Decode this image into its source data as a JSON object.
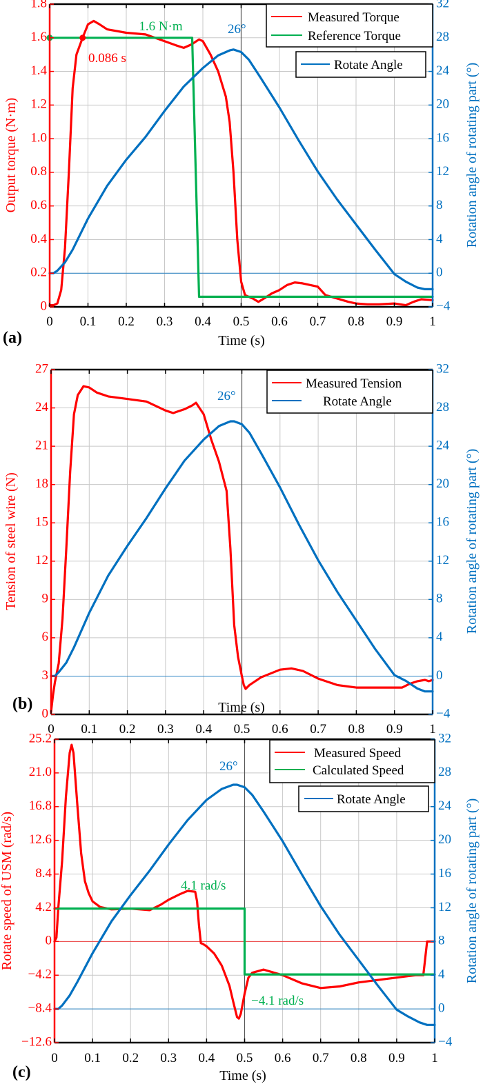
{
  "colors": {
    "red": "#ff0000",
    "green": "#00b050",
    "blue": "#0070c0",
    "grid": "#c8c8c8",
    "axis": "#000000"
  },
  "chart_data": [
    {
      "panel": "(a)",
      "type": "line",
      "xlabel": "Time (s)",
      "ylabel_left": "Output torque (N·m)",
      "ylabel_right": "Rotation angle of rotating part (°)",
      "xlim": [
        0,
        1
      ],
      "ylim_left": [
        0,
        1.8
      ],
      "ylim_right": [
        -4,
        32
      ],
      "xticks": [
        "0",
        "0.1",
        "0.2",
        "0.3",
        "0.4",
        "0.5",
        "0.6",
        "0.7",
        "0.8",
        "0.9",
        "1"
      ],
      "yticks_left": [
        "0",
        "0.2",
        "0.4",
        "0.6",
        "0.8",
        "1.0",
        "1.2",
        "1.4",
        "1.6",
        "1.8"
      ],
      "yticks_left_values": [
        0,
        0.2,
        0.4,
        0.6,
        0.8,
        1.0,
        1.2,
        1.4,
        1.6,
        1.8
      ],
      "yticks_right": [
        "−4",
        "0",
        "4",
        "8",
        "12",
        "16",
        "20",
        "24",
        "28",
        "32"
      ],
      "yticks_right_values": [
        -4,
        0,
        4,
        8,
        12,
        16,
        20,
        24,
        28,
        32
      ],
      "grid": true,
      "vline_x": 0.5,
      "hline_right": 0,
      "legend": {
        "group1": [
          "Measured Torque",
          "Reference Torque"
        ],
        "group2": [
          "Rotate Angle"
        ],
        "placement": "top-right"
      },
      "annotations": [
        {
          "text": "1.6 N·m",
          "series": "Reference Torque",
          "x": 0.26,
          "y": 1.66
        },
        {
          "text": "0.086 s",
          "series": "Measured Torque",
          "x": 0.1,
          "y": 1.47
        },
        {
          "text": "26°",
          "series": "Rotate Angle",
          "x": 0.455,
          "y_right": 28.7
        }
      ],
      "markers": [
        {
          "series": "Reference Torque",
          "x": 0.0,
          "y": 1.6
        },
        {
          "series": "Measured Torque",
          "x": 0.086,
          "y": 1.6
        }
      ],
      "series": [
        {
          "name": "Measured Torque",
          "axis": "left",
          "color": "red",
          "x": [
            0,
            0.01,
            0.02,
            0.03,
            0.04,
            0.05,
            0.06,
            0.07,
            0.086,
            0.1,
            0.115,
            0.13,
            0.15,
            0.2,
            0.25,
            0.3,
            0.33,
            0.35,
            0.37,
            0.39,
            0.4,
            0.42,
            0.44,
            0.46,
            0.47,
            0.48,
            0.49,
            0.5,
            0.51,
            0.52,
            0.53,
            0.545,
            0.56,
            0.58,
            0.6,
            0.62,
            0.64,
            0.66,
            0.7,
            0.72,
            0.75,
            0.78,
            0.8,
            0.83,
            0.86,
            0.9,
            0.93,
            0.95,
            0.97,
            1.0
          ],
          "y": [
            0.01,
            0.01,
            0.02,
            0.1,
            0.35,
            0.8,
            1.3,
            1.5,
            1.6,
            1.68,
            1.7,
            1.68,
            1.65,
            1.63,
            1.62,
            1.58,
            1.555,
            1.54,
            1.56,
            1.59,
            1.58,
            1.5,
            1.4,
            1.25,
            1.1,
            0.8,
            0.4,
            0.15,
            0.07,
            0.06,
            0.05,
            0.03,
            0.05,
            0.08,
            0.1,
            0.13,
            0.145,
            0.14,
            0.12,
            0.07,
            0.05,
            0.03,
            0.02,
            0.015,
            0.015,
            0.02,
            0.01,
            0.03,
            0.045,
            0.04
          ]
        },
        {
          "name": "Reference Torque",
          "axis": "left",
          "color": "green",
          "x": [
            0,
            0.372,
            0.39,
            1.0
          ],
          "y": [
            1.6,
            1.6,
            0.06,
            0.06
          ]
        },
        {
          "name": "Rotate Angle",
          "axis": "right",
          "color": "blue",
          "x": [
            0,
            0.01,
            0.02,
            0.04,
            0.06,
            0.1,
            0.15,
            0.2,
            0.25,
            0.3,
            0.35,
            0.4,
            0.44,
            0.47,
            0.48,
            0.5,
            0.52,
            0.55,
            0.6,
            0.65,
            0.7,
            0.75,
            0.8,
            0.85,
            0.9,
            0.93,
            0.96,
            0.98,
            1.0
          ],
          "y": [
            0,
            0,
            0.3,
            1.3,
            2.8,
            6.5,
            10.4,
            13.5,
            16.2,
            19.3,
            22.2,
            24.4,
            25.9,
            26.5,
            26.6,
            26.3,
            25.4,
            23.3,
            19.7,
            15.8,
            12.1,
            8.8,
            5.8,
            2.8,
            -0.1,
            -1.0,
            -1.7,
            -1.9,
            -1.9
          ]
        }
      ]
    },
    {
      "panel": "(b)",
      "type": "line",
      "xlabel": "Time (s)",
      "ylabel_left": "Tension of steel wire  (N)",
      "ylabel_right": "Rotation angle of rotating part (°)",
      "xlim": [
        0,
        1
      ],
      "ylim_left": [
        0,
        27
      ],
      "ylim_right": [
        -4,
        32
      ],
      "xticks": [
        "0",
        "0.1",
        "0.2",
        "0.3",
        "0.4",
        "0.5",
        "0.6",
        "0.7",
        "0.8",
        "0.9",
        "1"
      ],
      "yticks_left": [
        "0",
        "3",
        "6",
        "9",
        "12",
        "15",
        "18",
        "21",
        "24",
        "27"
      ],
      "yticks_left_values": [
        0,
        3,
        6,
        9,
        12,
        15,
        18,
        21,
        24,
        27
      ],
      "yticks_right": [
        "−4",
        "0",
        "4",
        "8",
        "12",
        "16",
        "20",
        "24",
        "28",
        "32"
      ],
      "yticks_right_values": [
        -4,
        0,
        4,
        8,
        12,
        16,
        20,
        24,
        28,
        32
      ],
      "grid": true,
      "vline_x": 0.5,
      "hline_right": 0,
      "legend": {
        "group1": [
          "Measured Tension",
          "Rotate Angle"
        ],
        "placement": "top-right"
      },
      "annotations": [
        {
          "text": "26°",
          "series": "Rotate Angle",
          "x": 0.46,
          "y_right": 29.1
        }
      ],
      "series": [
        {
          "name": "Measured Tension",
          "axis": "left",
          "color": "red",
          "x": [
            0,
            0.005,
            0.01,
            0.02,
            0.03,
            0.04,
            0.05,
            0.06,
            0.07,
            0.085,
            0.1,
            0.12,
            0.15,
            0.2,
            0.25,
            0.3,
            0.32,
            0.35,
            0.37,
            0.38,
            0.4,
            0.42,
            0.44,
            0.46,
            0.47,
            0.48,
            0.49,
            0.5,
            0.505,
            0.51,
            0.52,
            0.55,
            0.6,
            0.63,
            0.66,
            0.7,
            0.75,
            0.8,
            0.85,
            0.9,
            0.92,
            0.94,
            0.96,
            0.98,
            0.99,
            1.0
          ],
          "y": [
            0.2,
            1.5,
            2.5,
            4.0,
            7.5,
            13.0,
            19.0,
            23.5,
            25.0,
            25.7,
            25.6,
            25.2,
            24.9,
            24.7,
            24.5,
            23.8,
            23.6,
            23.9,
            24.2,
            24.4,
            23.5,
            21.5,
            19.8,
            17.5,
            13.0,
            7.0,
            4.5,
            3.0,
            2.3,
            2.0,
            2.3,
            2.9,
            3.5,
            3.6,
            3.4,
            2.8,
            2.3,
            2.1,
            2.1,
            2.1,
            2.1,
            2.4,
            2.6,
            2.7,
            2.6,
            2.7
          ]
        },
        {
          "name": "Rotate Angle",
          "axis": "right",
          "color": "blue",
          "x": [
            0,
            0.01,
            0.02,
            0.04,
            0.06,
            0.1,
            0.15,
            0.2,
            0.25,
            0.3,
            0.35,
            0.4,
            0.44,
            0.47,
            0.48,
            0.5,
            0.52,
            0.55,
            0.6,
            0.65,
            0.7,
            0.75,
            0.8,
            0.85,
            0.9,
            0.93,
            0.96,
            0.98,
            1.0
          ],
          "y": [
            0,
            0,
            0.4,
            1.4,
            3.0,
            6.6,
            10.5,
            13.6,
            16.5,
            19.6,
            22.5,
            24.7,
            26.1,
            26.6,
            26.6,
            26.3,
            25.4,
            23.3,
            19.7,
            15.8,
            12.1,
            8.8,
            5.8,
            2.8,
            0.1,
            -0.5,
            -1.3,
            -1.6,
            -1.6
          ]
        }
      ]
    },
    {
      "panel": "(c)",
      "type": "line",
      "xlabel": "Time (s)",
      "ylabel_left": "Rotate speed of USM  (rad/s)",
      "ylabel_right": "Rotation angle of rotating part (°)",
      "xlim": [
        0,
        1
      ],
      "ylim_left": [
        -12.6,
        25.2
      ],
      "ylim_right": [
        -4,
        32
      ],
      "xticks": [
        "0",
        "0.1",
        "0.2",
        "0.3",
        "0.4",
        "0.5",
        "0.6",
        "0.7",
        "0.8",
        "0.9",
        "1"
      ],
      "yticks_left": [
        "−12.6",
        "−8.4",
        "−4.2",
        "0",
        "4.2",
        "8.4",
        "12.6",
        "16.8",
        "21.0",
        "25.2"
      ],
      "yticks_left_values": [
        -12.6,
        -8.4,
        -4.2,
        0,
        4.2,
        8.4,
        12.6,
        16.8,
        21.0,
        25.2
      ],
      "yticks_right": [
        "−4",
        "0",
        "4",
        "8",
        "12",
        "16",
        "20",
        "24",
        "28",
        "32"
      ],
      "yticks_right_values": [
        -4,
        0,
        4,
        8,
        12,
        16,
        20,
        24,
        28,
        32
      ],
      "grid": true,
      "vline_x": 0.5,
      "hline_left": 0,
      "hline_right": 0,
      "legend": {
        "group1": [
          "Measured Speed",
          "Calculated Speed"
        ],
        "group2": [
          "Rotate Angle"
        ],
        "placement": "top-right"
      },
      "annotations": [
        {
          "text": "4.1 rad/s",
          "series": "Calculated Speed",
          "x": 0.42,
          "y": 6.4
        },
        {
          "text": "−4.1 rad/s",
          "series": "Calculated Speed",
          "x": 0.6,
          "y": -7.0
        },
        {
          "text": "26°",
          "series": "Rotate Angle",
          "x": 0.465,
          "y_right": 28.3
        }
      ],
      "series": [
        {
          "name": "Measured Speed",
          "axis": "left",
          "color": "red",
          "x": [
            0,
            0.005,
            0.01,
            0.02,
            0.03,
            0.04,
            0.045,
            0.05,
            0.06,
            0.07,
            0.08,
            0.09,
            0.1,
            0.12,
            0.15,
            0.2,
            0.25,
            0.28,
            0.3,
            0.33,
            0.35,
            0.37,
            0.375,
            0.38,
            0.385,
            0.39,
            0.4,
            0.42,
            0.44,
            0.46,
            0.47,
            0.48,
            0.485,
            0.49,
            0.5,
            0.51,
            0.52,
            0.55,
            0.6,
            0.65,
            0.7,
            0.75,
            0.8,
            0.85,
            0.9,
            0.95,
            0.97,
            0.98,
            1.0
          ],
          "y": [
            0,
            0.5,
            4.2,
            10.0,
            18.0,
            23.5,
            24.5,
            23.5,
            17.0,
            11.0,
            7.5,
            6.0,
            5.0,
            4.3,
            4.0,
            4.1,
            3.9,
            4.6,
            5.2,
            5.9,
            6.3,
            6.2,
            5.0,
            2.0,
            -0.2,
            -0.3,
            -0.6,
            -1.5,
            -3.0,
            -5.5,
            -7.5,
            -9.4,
            -9.6,
            -9.0,
            -6.5,
            -4.5,
            -3.9,
            -3.5,
            -4.2,
            -5.2,
            -5.8,
            -5.6,
            -5.1,
            -4.8,
            -4.5,
            -4.2,
            -4.2,
            0,
            0
          ]
        },
        {
          "name": "Calculated Speed",
          "axis": "left",
          "color": "green",
          "x": [
            0,
            0.5,
            0.5,
            1.0
          ],
          "y": [
            4.1,
            4.1,
            -4.1,
            -4.1
          ]
        },
        {
          "name": "Rotate Angle",
          "axis": "right",
          "color": "blue",
          "x": [
            0,
            0.01,
            0.02,
            0.04,
            0.06,
            0.1,
            0.15,
            0.2,
            0.25,
            0.3,
            0.35,
            0.4,
            0.44,
            0.47,
            0.48,
            0.5,
            0.52,
            0.55,
            0.6,
            0.65,
            0.7,
            0.75,
            0.8,
            0.85,
            0.9,
            0.93,
            0.96,
            0.98,
            1.0
          ],
          "y": [
            0,
            0,
            0.4,
            1.6,
            3.2,
            6.6,
            10.4,
            13.5,
            16.4,
            19.5,
            22.4,
            24.8,
            26.1,
            26.6,
            26.6,
            26.3,
            25.4,
            23.4,
            19.9,
            16.0,
            12.2,
            8.8,
            5.8,
            2.8,
            -0.1,
            -0.9,
            -1.6,
            -1.9,
            -1.9
          ]
        }
      ]
    }
  ]
}
